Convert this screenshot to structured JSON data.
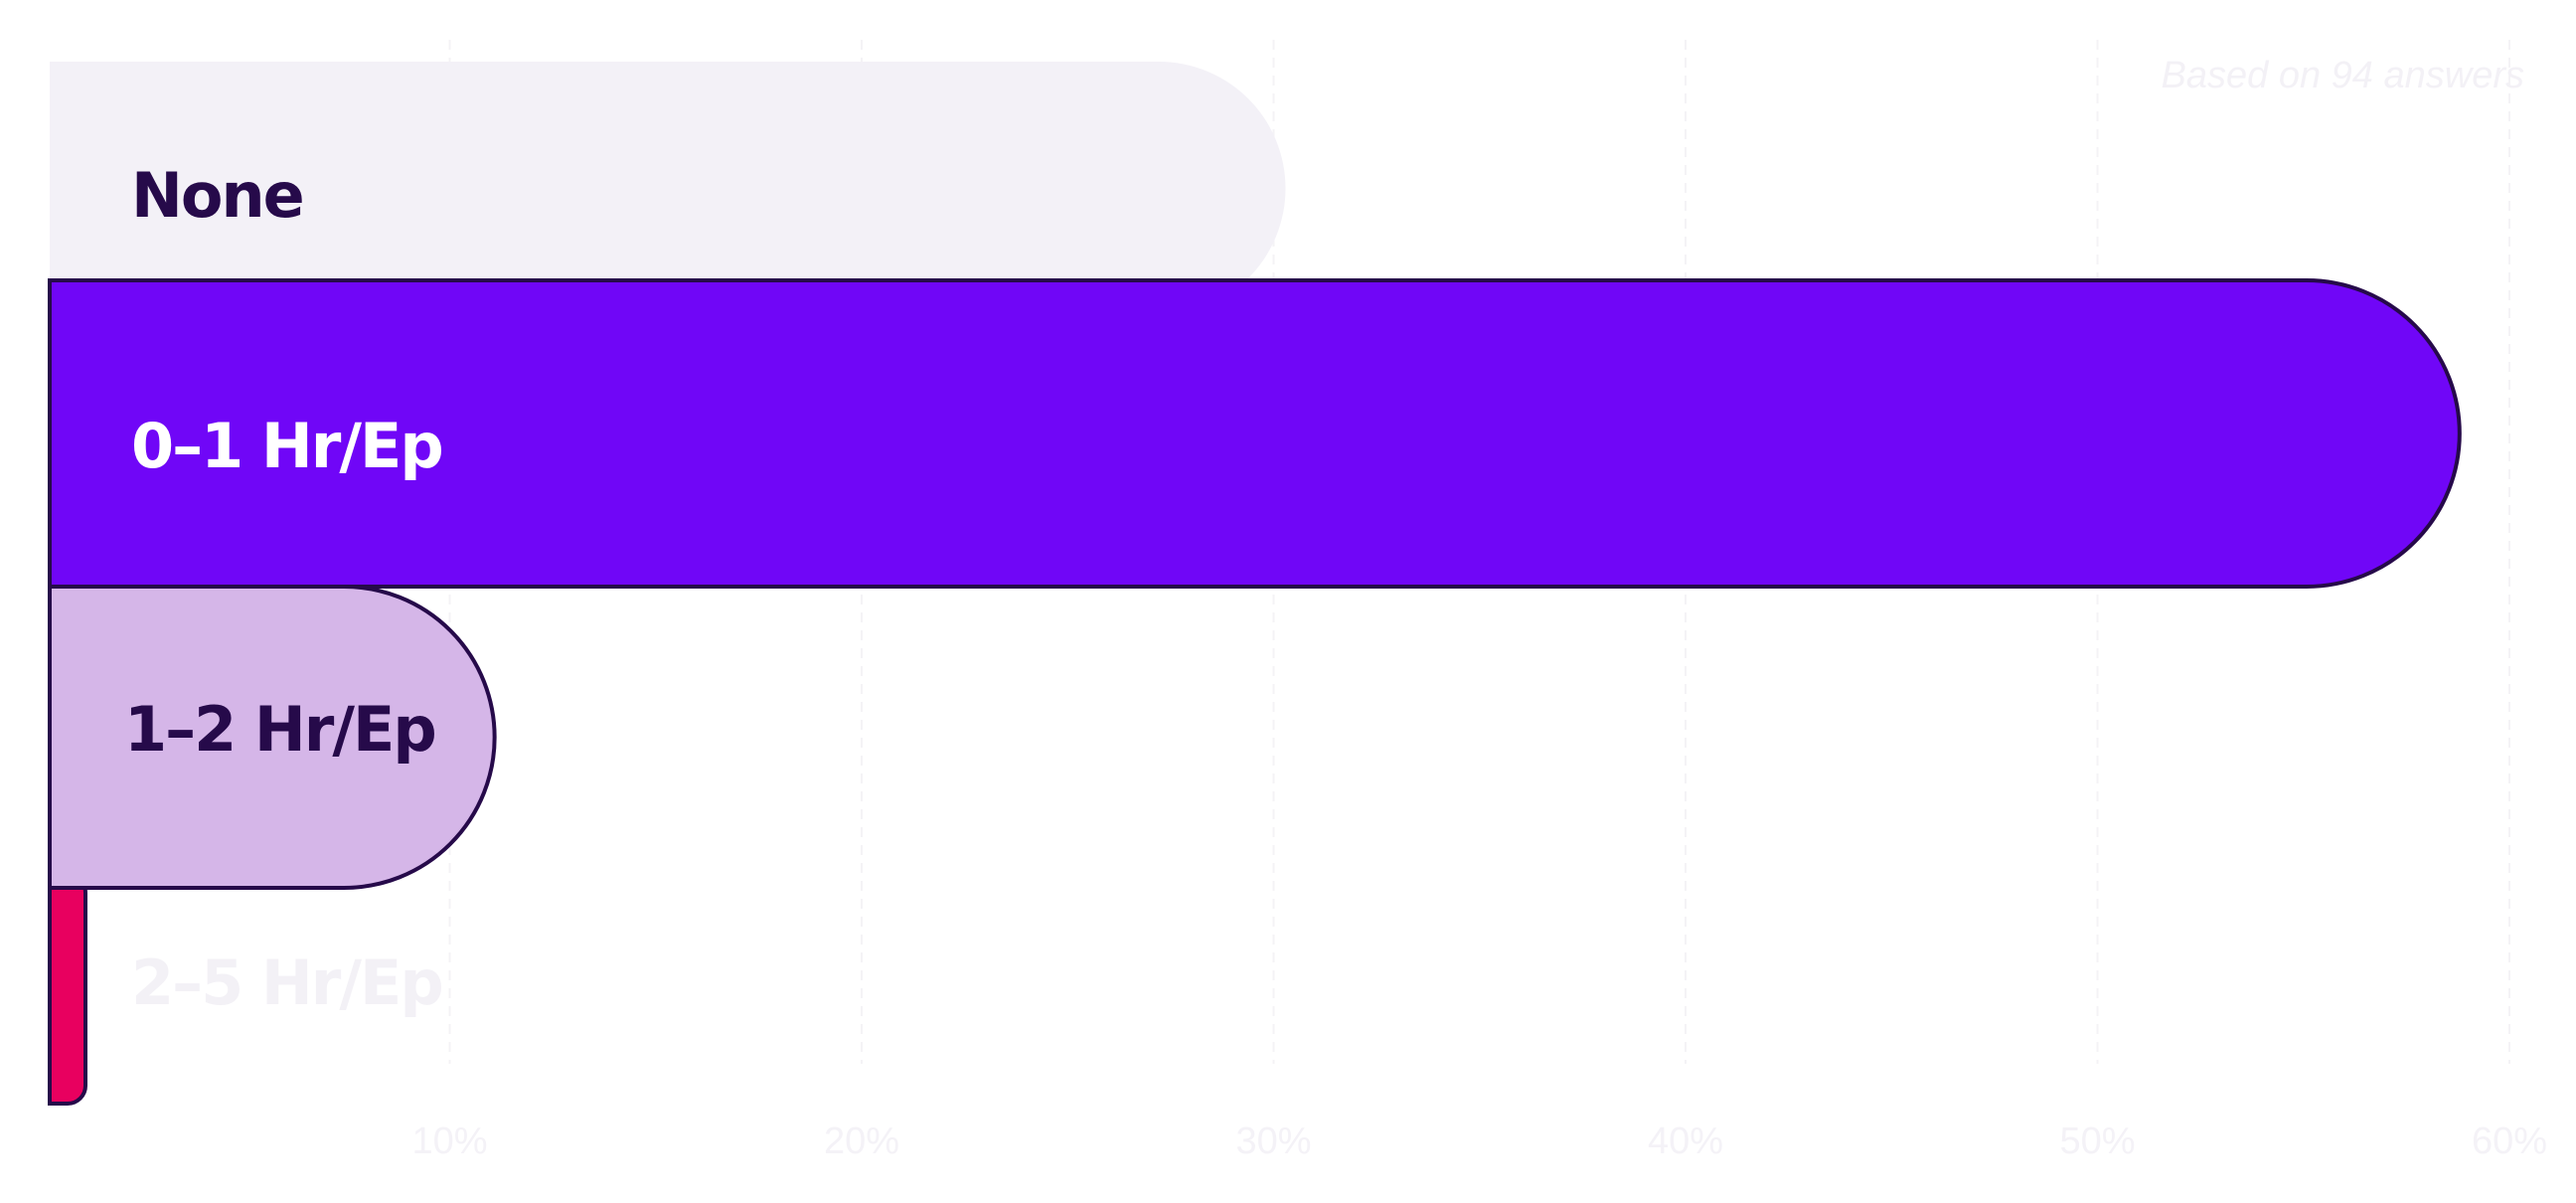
{
  "chart_data": {
    "type": "bar",
    "orientation": "horizontal",
    "note": "Based on 94 answers",
    "categories": [
      "None",
      "0–1 Hr/Ep",
      "1–2 Hr/Ep",
      "2–5 Hr/Ep"
    ],
    "values": [
      30,
      58.5,
      10.8,
      0.5
    ],
    "colors": [
      "#f3f1f7",
      "#7006f7",
      "#d5b6e8",
      "#e8005f"
    ],
    "label_colors": [
      "#260a4a",
      "#ffffff",
      "#260a4a",
      "#f3f1f6"
    ],
    "xlim": [
      0,
      60
    ],
    "xticks": [
      10,
      20,
      30,
      40,
      50,
      60
    ],
    "xtick_labels": [
      "10%",
      "20%",
      "30%",
      "40%",
      "50%",
      "60%"
    ],
    "grid": true,
    "outline_color": "#260a4a"
  }
}
